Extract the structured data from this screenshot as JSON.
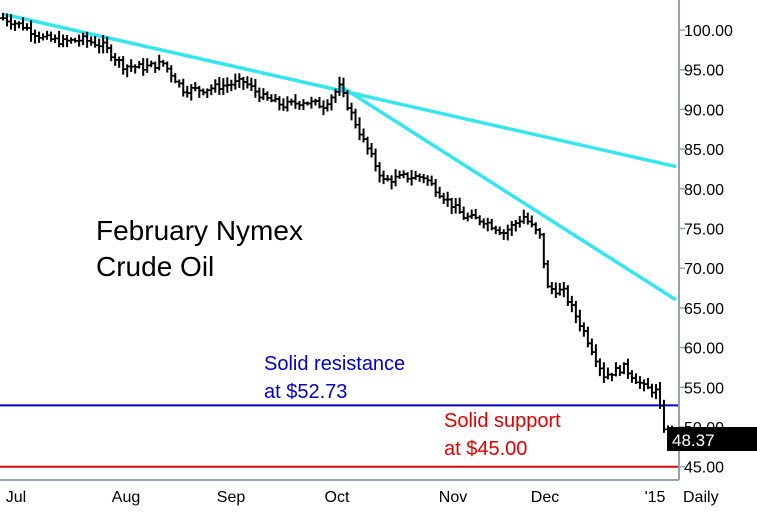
{
  "chart_data": {
    "type": "ohlc",
    "title_lines": [
      "February Nymex",
      "Crude Oil"
    ],
    "x_ticks": [
      "Jul",
      "Aug",
      "Sep",
      "Oct",
      "Nov",
      "Dec",
      "'15"
    ],
    "period_label": "Daily",
    "y_ticks": [
      "100.00",
      "95.00",
      "90.00",
      "85.00",
      "80.00",
      "75.00",
      "70.00",
      "65.00",
      "60.00",
      "55.00",
      "50.00",
      "45.00"
    ],
    "ylim": [
      44,
      102.5
    ],
    "last_price": "48.37",
    "annotations": [
      {
        "lines": [
          "Solid resistance",
          "at $52.73"
        ],
        "color": "#0000cc"
      },
      {
        "lines": [
          "Solid support",
          "at $45.00"
        ],
        "color": "#e00000"
      }
    ],
    "horizontal_levels": [
      {
        "name": "resistance",
        "value": 52.73,
        "color": "#0000cc"
      },
      {
        "name": "support",
        "value": 45.0,
        "color": "#e00000"
      }
    ],
    "trendlines": [
      {
        "name": "long-trendline",
        "x1": 0,
        "y1": 102.0,
        "x2": 168,
        "y2": 82.8,
        "color": "#33e6f0"
      },
      {
        "name": "steep-trendline",
        "x1": 84,
        "y1": 93.0,
        "x2": 168,
        "y2": 66.0,
        "color": "#33e6f0"
      }
    ],
    "close_anchors": [
      [
        0,
        101.5
      ],
      [
        5,
        100.5
      ],
      [
        10,
        99.0
      ],
      [
        15,
        98.5
      ],
      [
        20,
        98.8
      ],
      [
        25,
        98.0
      ],
      [
        30,
        95.5
      ],
      [
        35,
        95.3
      ],
      [
        40,
        95.8
      ],
      [
        45,
        92.5
      ],
      [
        50,
        92.5
      ],
      [
        55,
        93.0
      ],
      [
        60,
        93.5
      ],
      [
        65,
        91.5
      ],
      [
        70,
        90.5
      ],
      [
        75,
        91.0
      ],
      [
        80,
        90.5
      ],
      [
        84,
        92.8
      ],
      [
        90,
        86.0
      ],
      [
        95,
        81.0
      ],
      [
        100,
        81.5
      ],
      [
        105,
        81.5
      ],
      [
        110,
        79.0
      ],
      [
        115,
        76.5
      ],
      [
        120,
        76.0
      ],
      [
        125,
        74.5
      ],
      [
        130,
        76.5
      ],
      [
        134,
        74.0
      ],
      [
        136,
        67.5
      ],
      [
        140,
        67.0
      ],
      [
        145,
        62.0
      ],
      [
        150,
        56.5
      ],
      [
        155,
        57.5
      ],
      [
        160,
        55.0
      ],
      [
        163,
        54.5
      ],
      [
        165,
        50.0
      ],
      [
        168,
        48.37
      ]
    ],
    "bar_count": 169,
    "volatility": 0.9
  }
}
